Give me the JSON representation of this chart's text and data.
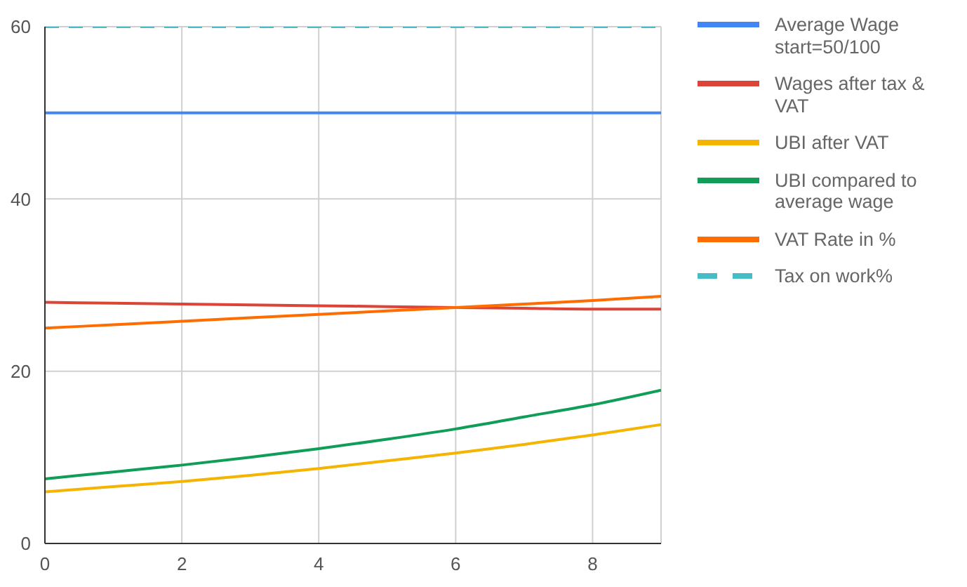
{
  "chart_data": {
    "type": "line",
    "x": [
      0,
      1,
      2,
      3,
      4,
      5,
      6,
      7,
      8,
      9
    ],
    "xlim": [
      0,
      9
    ],
    "xticks": [
      0,
      2,
      4,
      6,
      8
    ],
    "ylim": [
      0,
      60
    ],
    "yticks": [
      0,
      20,
      40,
      60
    ],
    "grid": true,
    "legend": "right",
    "marker": "none",
    "series": [
      {
        "name": "Average Wage start=50/100",
        "color": "#4285f4",
        "values": [
          50,
          50,
          50,
          50,
          50,
          50,
          50,
          50,
          50,
          50
        ]
      },
      {
        "name": "Wages after tax & VAT",
        "color": "#db4437",
        "values": [
          28.0,
          27.9,
          27.8,
          27.7,
          27.6,
          27.5,
          27.4,
          27.3,
          27.2,
          27.2
        ]
      },
      {
        "name": "UBI after VAT",
        "color": "#f4b400",
        "values": [
          6.0,
          6.6,
          7.2,
          7.9,
          8.7,
          9.6,
          10.5,
          11.5,
          12.6,
          13.8
        ]
      },
      {
        "name": "UBI compared to average wage",
        "color": "#0f9d58",
        "values": [
          7.5,
          8.3,
          9.1,
          10.0,
          11.0,
          12.1,
          13.3,
          14.7,
          16.1,
          17.8
        ]
      },
      {
        "name": "VAT Rate in %",
        "color": "#ff6d00",
        "values": [
          25.0,
          25.4,
          25.8,
          26.2,
          26.6,
          27.0,
          27.4,
          27.8,
          28.2,
          28.7
        ]
      },
      {
        "name": "Tax on work%",
        "color": "#46bdc6",
        "line_style": "dashed",
        "values": [
          60,
          60,
          60,
          60,
          60,
          60,
          60,
          60,
          60,
          60
        ]
      }
    ]
  }
}
